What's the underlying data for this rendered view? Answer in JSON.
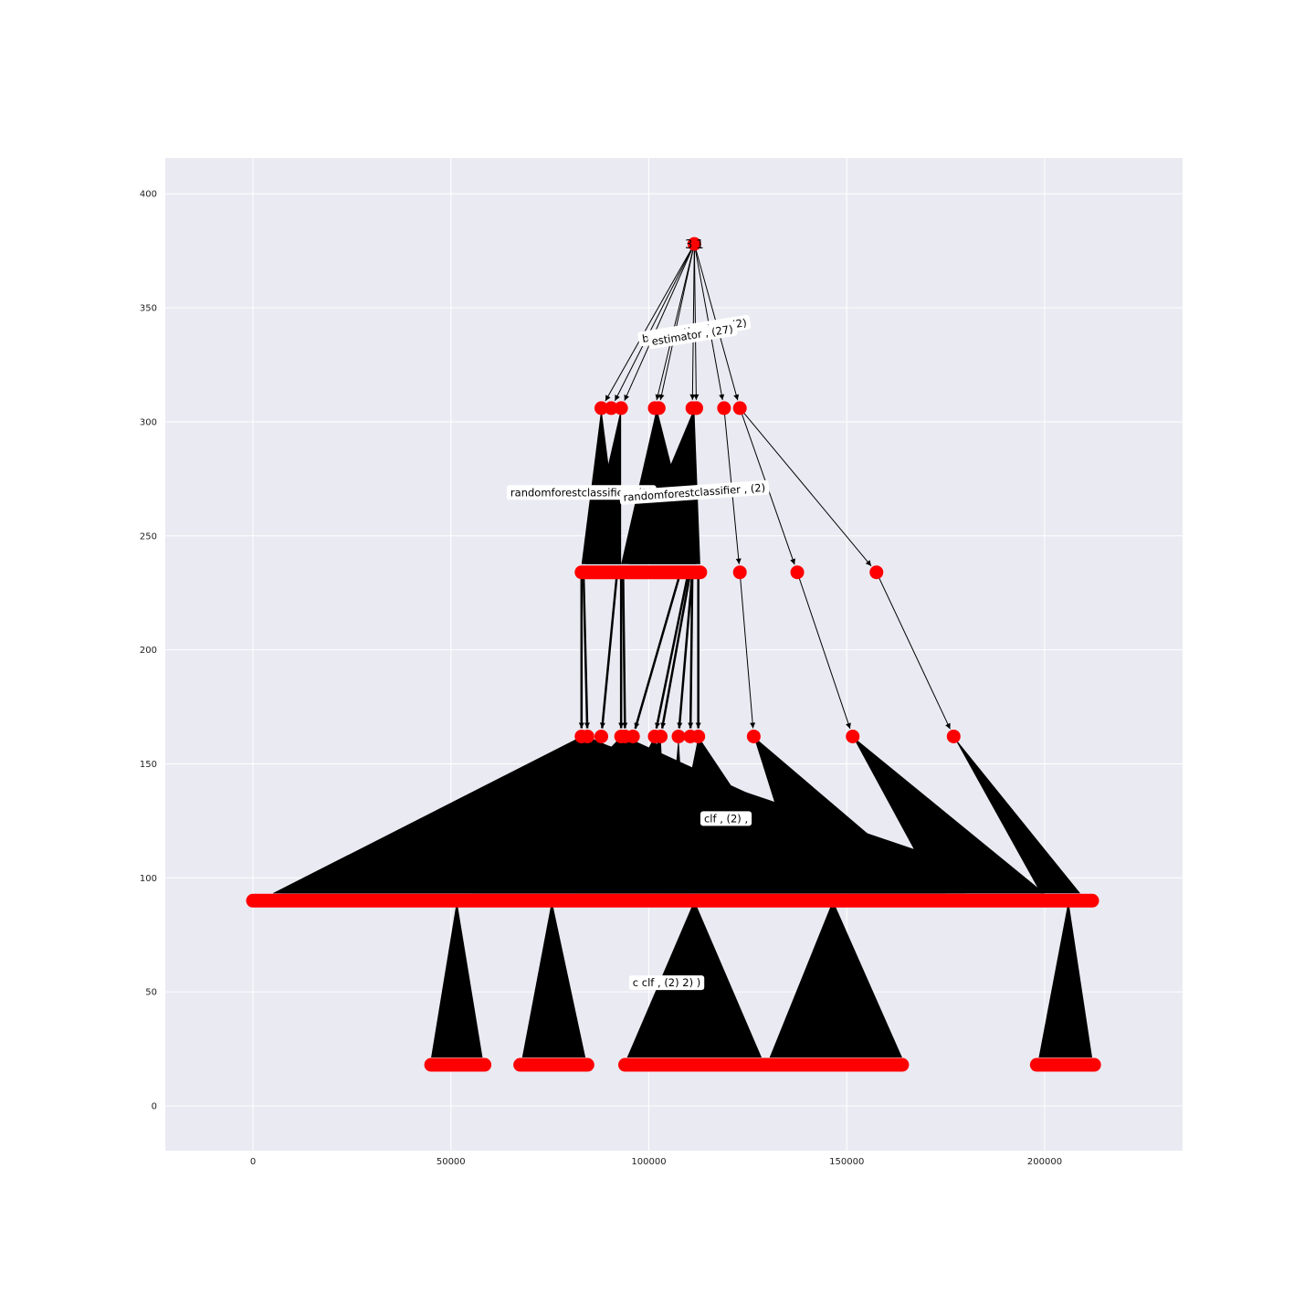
{
  "colors": {
    "axes_background": "#eaeaf2",
    "grid": "#ffffff",
    "node": "#ff0000",
    "edge": "#000000"
  },
  "chart_data": {
    "type": "tree-diagram",
    "xlim": [
      -22000,
      235000
    ],
    "ylim": [
      -20,
      415
    ],
    "x_ticks": [
      0,
      50000,
      100000,
      150000,
      200000
    ],
    "y_ticks": [
      0,
      50,
      100,
      150,
      200,
      250,
      300,
      350,
      400
    ],
    "grid": true,
    "root": {
      "label": "3 1",
      "x": 111500,
      "y": 378
    },
    "level_y": [
      306,
      234,
      162,
      90,
      18
    ],
    "level1_x": [
      88000,
      90500,
      93000,
      101500,
      102500,
      111000,
      112000,
      119000,
      123000
    ],
    "level2_groups": [
      [
        83000,
        113000
      ]
    ],
    "level2_points": [
      123000,
      137500,
      157500
    ],
    "level3_x": [
      83000,
      84500,
      88000,
      93000,
      94000,
      96000,
      101500,
      103000,
      107500,
      110500,
      112500,
      126500,
      151500,
      177000
    ],
    "level3_fan_targets": [
      [
        5000,
        200000
      ],
      [
        5000,
        175000
      ],
      [
        7000,
        175000
      ],
      [
        55000,
        175000
      ],
      [
        57000,
        180000
      ],
      [
        80000,
        110000
      ],
      [
        82000,
        105000
      ],
      [
        104000,
        110000
      ],
      [
        104500,
        138000
      ],
      [
        112000,
        139000
      ],
      [
        139000,
        173000
      ],
      [
        173000,
        200000
      ],
      [
        199000,
        209000
      ]
    ],
    "level4_segments": [
      [
        0,
        212000
      ]
    ],
    "level4_fan_sources": [
      51500,
      75500,
      111500,
      146500,
      206000
    ],
    "level5_segments": [
      [
        45000,
        58500
      ],
      [
        67500,
        84500
      ],
      [
        94000,
        164000
      ],
      [
        198000,
        212500
      ]
    ],
    "level5_fan_targets": [
      [
        45000,
        58000
      ],
      [
        68000,
        84000
      ],
      [
        94500,
        128500
      ],
      [
        130500,
        164000
      ],
      [
        198500,
        212000
      ]
    ],
    "edge_labels": [
      {
        "text": "base_estimator , (2)",
        "x": 111500,
        "y": 340,
        "angle": -9
      },
      {
        "text": "estimator , (27)",
        "x": 111000,
        "y": 338,
        "angle": -9
      },
      {
        "text": "randomforestclassifier , (2)",
        "x": 83000,
        "y": 269,
        "angle": 0
      },
      {
        "text": "randomforestclassifier , (2)",
        "x": 111500,
        "y": 269,
        "angle": -4
      },
      {
        "text": "clf , (2) ,",
        "x": 119500,
        "y": 126,
        "angle": 0
      },
      {
        "text": "c clf , (2) 2) )",
        "x": 104500,
        "y": 54,
        "angle": 0
      }
    ]
  }
}
